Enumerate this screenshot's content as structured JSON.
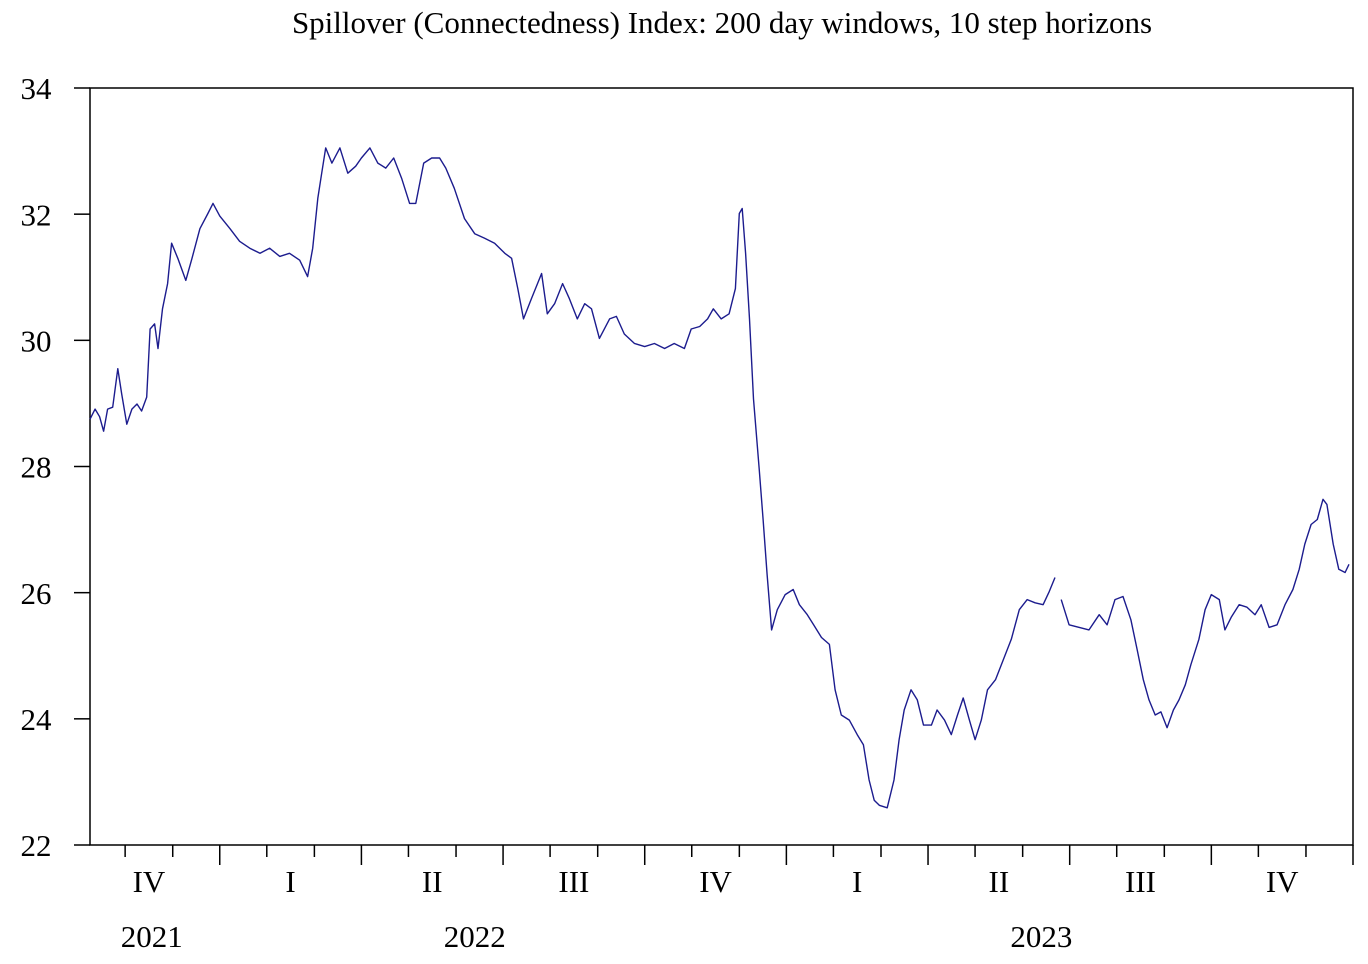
{
  "chart_data": {
    "type": "line",
    "title": "Spillover (Connectedness) Index: 200 day windows, 10 step horizons",
    "x": [
      2021.771,
      2021.78,
      2021.788,
      2021.795,
      2021.802,
      2021.811,
      2021.82,
      2021.827,
      2021.836,
      2021.845,
      2021.854,
      2021.862,
      2021.871,
      2021.877,
      2021.885,
      2021.891,
      2021.899,
      2021.908,
      2021.915,
      2021.926,
      2021.94,
      2021.951,
      2021.965,
      2021.979,
      2021.988,
      2022.0,
      2022.018,
      2022.035,
      2022.053,
      2022.071,
      2022.088,
      2022.106,
      2022.123,
      2022.141,
      2022.155,
      2022.164,
      2022.173,
      2022.18,
      2022.187,
      2022.198,
      2022.212,
      2022.226,
      2022.24,
      2022.25,
      2022.265,
      2022.279,
      2022.293,
      2022.307,
      2022.321,
      2022.335,
      2022.346,
      2022.36,
      2022.374,
      2022.388,
      2022.399,
      2022.414,
      2022.432,
      2022.45,
      2022.467,
      2022.485,
      2022.503,
      2022.515,
      2022.526,
      2022.536,
      2022.55,
      2022.568,
      2022.578,
      2022.591,
      2022.605,
      2022.617,
      2022.631,
      2022.644,
      2022.656,
      2022.67,
      2022.688,
      2022.7,
      2022.714,
      2022.732,
      2022.75,
      2022.767,
      2022.785,
      2022.802,
      2022.82,
      2022.832,
      2022.847,
      2022.861,
      2022.871,
      2022.885,
      2022.899,
      2022.91,
      2022.917,
      2022.922,
      2022.928,
      2022.935,
      2022.942,
      2022.952,
      2022.959,
      2022.966,
      2022.974,
      2022.984,
      2022.998,
      2023.012,
      2023.023,
      2023.037,
      2023.048,
      2023.062,
      2023.076,
      2023.086,
      2023.097,
      2023.111,
      2023.125,
      2023.136,
      2023.146,
      2023.155,
      2023.164,
      2023.178,
      2023.19,
      2023.199,
      2023.208,
      2023.22,
      2023.231,
      2023.242,
      2023.256,
      2023.266,
      2023.279,
      2023.291,
      2023.302,
      2023.312,
      2023.323,
      2023.333,
      2023.344,
      2023.355,
      2023.369,
      2023.383,
      2023.397,
      2023.411,
      2023.425,
      2023.439,
      2023.453,
      2023.464,
      2023.474,
      2023.478,
      2023.485,
      2023.499,
      2023.517,
      2023.534,
      2023.552,
      2023.566,
      2023.58,
      2023.594,
      2023.608,
      2023.619,
      2023.63,
      2023.64,
      2023.651,
      2023.661,
      2023.672,
      2023.683,
      2023.693,
      2023.704,
      2023.714,
      2023.728,
      2023.739,
      2023.75,
      2023.764,
      2023.774,
      2023.785,
      2023.799,
      2023.813,
      2023.827,
      2023.838,
      2023.852,
      2023.866,
      2023.88,
      2023.894,
      2023.905,
      2023.915,
      2023.926,
      2023.937,
      2023.947,
      2023.954,
      2023.965,
      2023.975,
      2023.986,
      2023.993
    ],
    "series": [
      {
        "color": "#1c1c8e",
        "values": [
          28.75,
          28.91,
          28.79,
          28.56,
          28.91,
          28.94,
          29.55,
          29.15,
          28.67,
          28.91,
          28.99,
          28.88,
          29.1,
          30.18,
          30.26,
          29.87,
          30.5,
          30.9,
          31.54,
          31.3,
          30.95,
          31.3,
          31.77,
          32.01,
          32.17,
          31.97,
          31.77,
          31.57,
          31.46,
          31.38,
          31.46,
          31.33,
          31.38,
          31.27,
          31.01,
          31.46,
          32.25,
          32.65,
          33.05,
          32.81,
          33.05,
          32.65,
          32.76,
          32.89,
          33.05,
          32.81,
          32.73,
          32.89,
          32.57,
          32.17,
          32.17,
          32.81,
          32.89,
          32.89,
          32.73,
          32.41,
          31.93,
          31.69,
          31.62,
          31.54,
          31.38,
          31.3,
          30.82,
          30.34,
          30.66,
          31.06,
          30.42,
          30.58,
          30.9,
          30.66,
          30.34,
          30.58,
          30.5,
          30.03,
          30.34,
          30.38,
          30.1,
          29.95,
          29.9,
          29.95,
          29.87,
          29.95,
          29.87,
          30.18,
          30.22,
          30.34,
          30.5,
          30.34,
          30.42,
          30.82,
          32.01,
          32.09,
          31.38,
          30.34,
          29.07,
          27.96,
          27.16,
          26.29,
          25.41,
          25.73,
          25.97,
          26.05,
          25.81,
          25.65,
          25.49,
          25.29,
          25.18,
          24.46,
          24.06,
          23.98,
          23.75,
          23.59,
          23.03,
          22.71,
          22.63,
          22.59,
          23.03,
          23.67,
          24.14,
          24.46,
          24.3,
          23.9,
          23.9,
          24.14,
          23.98,
          23.75,
          24.06,
          24.33,
          23.98,
          23.67,
          23.98,
          24.46,
          24.62,
          24.94,
          25.26,
          25.73,
          25.89,
          25.84,
          25.81,
          26.02,
          26.24,
          null,
          25.89,
          25.49,
          25.45,
          25.41,
          25.65,
          25.49,
          25.89,
          25.94,
          25.57,
          25.1,
          24.62,
          24.3,
          24.06,
          24.11,
          23.86,
          24.14,
          24.3,
          24.54,
          24.86,
          25.26,
          25.73,
          25.97,
          25.89,
          25.41,
          25.61,
          25.81,
          25.77,
          25.65,
          25.81,
          25.45,
          25.49,
          25.81,
          26.05,
          26.37,
          26.77,
          27.08,
          27.16,
          27.48,
          27.4,
          26.77,
          26.37,
          26.32,
          26.45
        ]
      }
    ],
    "xlim": [
      2021.771,
      2024.0
    ],
    "xticks": [
      2021.833,
      2021.917,
      2022,
      2022.083,
      2022.167,
      2022.25,
      2022.333,
      2022.417,
      2022.5,
      2022.583,
      2022.667,
      2022.75,
      2022.833,
      2022.917,
      2023,
      2023.083,
      2023.167,
      2023.25,
      2023.333,
      2023.417,
      2023.5,
      2023.583,
      2023.667,
      2023.75,
      2023.833,
      2023.917,
      2024
    ],
    "quarter_labels": [
      {
        "value": 2021.875,
        "label": "IV"
      },
      {
        "value": 2022.125,
        "label": "I"
      },
      {
        "value": 2022.375,
        "label": "II"
      },
      {
        "value": 2022.625,
        "label": "III"
      },
      {
        "value": 2022.875,
        "label": "IV"
      },
      {
        "value": 2023.125,
        "label": "I"
      },
      {
        "value": 2023.375,
        "label": "II"
      },
      {
        "value": 2023.625,
        "label": "III"
      },
      {
        "value": 2023.875,
        "label": "IV"
      }
    ],
    "year_labels": [
      {
        "value": 2021.88,
        "label": "2021"
      },
      {
        "value": 2022.45,
        "label": "2022"
      },
      {
        "value": 2023.45,
        "label": "2023"
      }
    ],
    "ylim": [
      22,
      34
    ],
    "yticks": [
      22,
      24,
      26,
      28,
      30,
      32,
      34
    ]
  }
}
